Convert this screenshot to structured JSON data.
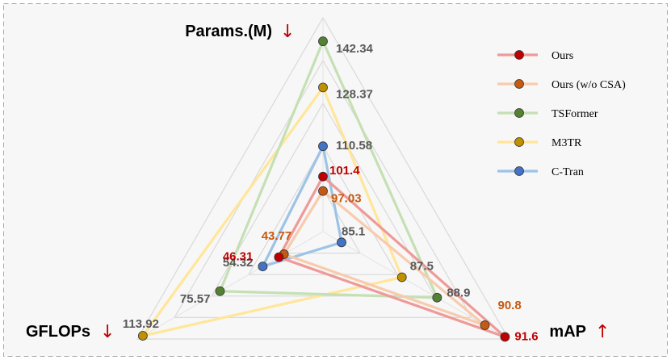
{
  "chart_data": {
    "type": "radar",
    "axes": [
      {
        "name": "Params.(M)",
        "arrow": "↓"
      },
      {
        "name": "mAP",
        "arrow": "↑"
      },
      {
        "name": "GFLOPs",
        "arrow": "↓"
      }
    ],
    "series": [
      {
        "name": "Ours",
        "color": "#c00000",
        "line_color": "#ee9a98",
        "values": {
          "params": 101.4,
          "map": 91.6,
          "gflops": 46.31
        },
        "labels": {
          "params": "101.4",
          "map": "91.6",
          "gflops": "46.31"
        }
      },
      {
        "name": "Ours (w/o CSA)",
        "color": "#c55a11",
        "line_color": "#f8cbad",
        "values": {
          "params": 97.03,
          "map": 90.8,
          "gflops": 43.77
        },
        "labels": {
          "params": "97.03",
          "map": "90.8",
          "gflops": "43.77"
        }
      },
      {
        "name": "TSFormer",
        "color": "#548235",
        "line_color": "#c5e0b4",
        "values": {
          "params": 142.34,
          "map": 88.9,
          "gflops": 75.57
        },
        "labels": {
          "params": "142.34",
          "map": "88.9",
          "gflops": "75.57"
        }
      },
      {
        "name": "M3TR",
        "color": "#bf9000",
        "line_color": "#ffe699",
        "values": {
          "params": 128.37,
          "map": 87.5,
          "gflops": 113.92
        },
        "labels": {
          "params": "128.37",
          "map": "87.5",
          "gflops": "113.92"
        }
      },
      {
        "name": "C-Tran",
        "color": "#4472c4",
        "line_color": "#9dc3e6",
        "values": {
          "params": 110.58,
          "map": 85.1,
          "gflops": 54.32
        },
        "labels": {
          "params": "110.58",
          "map": "85.1",
          "gflops": "54.32"
        }
      }
    ],
    "legend_position": "top-right",
    "grid": true
  }
}
